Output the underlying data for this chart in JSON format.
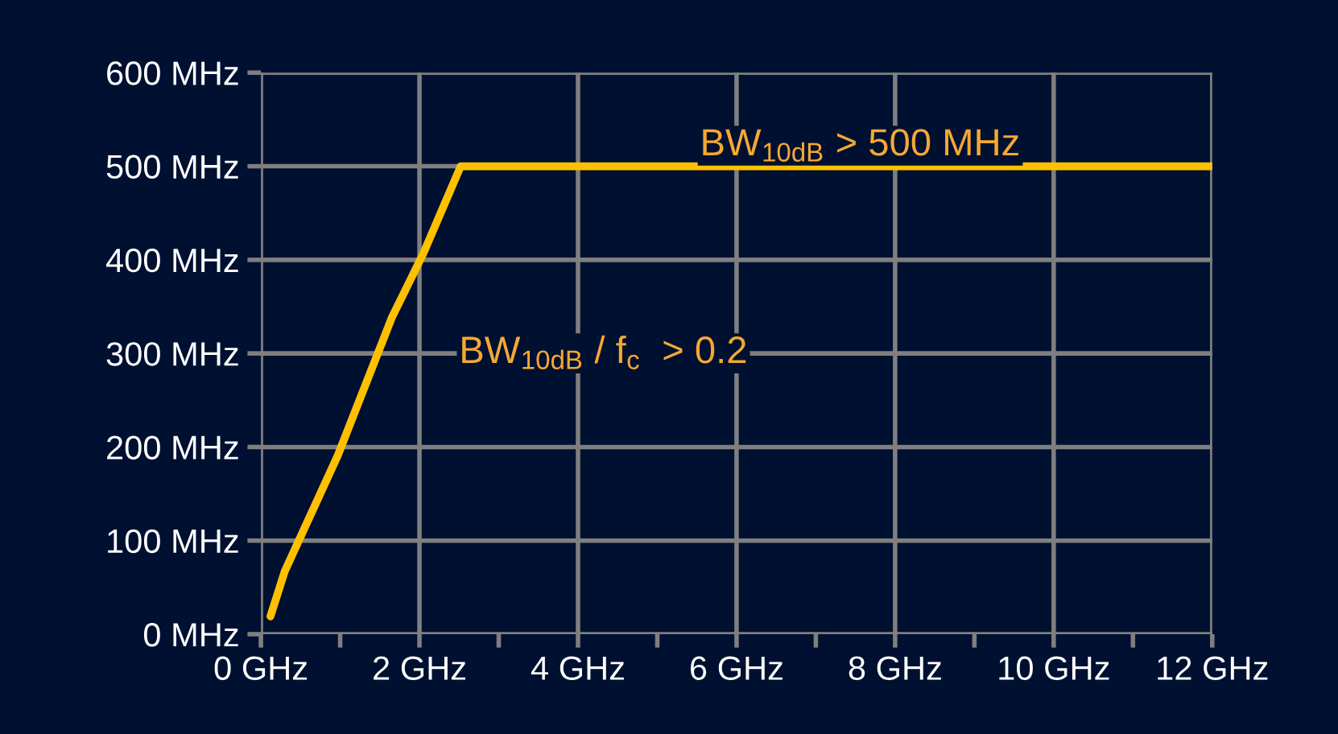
{
  "chart_data": {
    "type": "line",
    "x": [
      0.12,
      0.3,
      0.97,
      1.65,
      2.05,
      2.52,
      12
    ],
    "values": [
      19,
      67,
      191,
      338,
      407,
      500,
      500
    ],
    "color": "#ffc000",
    "xlim": [
      0,
      12
    ],
    "ylim": [
      0,
      600
    ],
    "xticks": [
      {
        "value": 0,
        "label": "0 GHz"
      },
      {
        "value": 1,
        "label": null
      },
      {
        "value": 2,
        "label": "2 GHz"
      },
      {
        "value": 3,
        "label": null
      },
      {
        "value": 4,
        "label": "4 GHz"
      },
      {
        "value": 5,
        "label": null
      },
      {
        "value": 6,
        "label": "6 GHz"
      },
      {
        "value": 7,
        "label": null
      },
      {
        "value": 8,
        "label": "8 GHz"
      },
      {
        "value": 9,
        "label": null
      },
      {
        "value": 10,
        "label": "10 GHz"
      },
      {
        "value": 11,
        "label": null
      },
      {
        "value": 12,
        "label": "12 GHz"
      }
    ],
    "yticks": [
      {
        "value": 0,
        "label": "0 MHz"
      },
      {
        "value": 100,
        "label": "100 MHz"
      },
      {
        "value": 200,
        "label": "200 MHz"
      },
      {
        "value": 300,
        "label": "300 MHz"
      },
      {
        "value": 400,
        "label": "400 MHz"
      },
      {
        "value": 500,
        "label": "500 MHz"
      },
      {
        "value": 600,
        "label": "600 MHz"
      }
    ],
    "grid": true,
    "marker": "none",
    "line_style": "solid",
    "legend": false,
    "annotations": [
      "BW$_{10dB}$ > 500 MHz",
      "BW$_{10dB}$ / f$_{c}$  > 0.2"
    ]
  }
}
